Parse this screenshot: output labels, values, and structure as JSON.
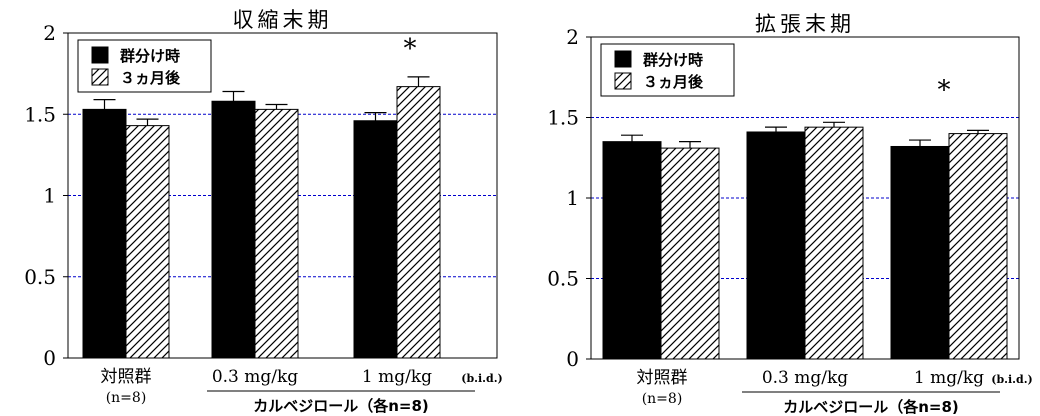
{
  "chart_data": [
    {
      "type": "bar",
      "title": "収縮末期",
      "categories": [
        "対照群\n(n=8)",
        "0.3 mg/kg",
        "1 mg/kg"
      ],
      "series": [
        {
          "name": "群分け時",
          "values": [
            1.53,
            1.58,
            1.46
          ],
          "errors": [
            0.06,
            0.06,
            0.05
          ],
          "fill": "#000000"
        },
        {
          "name": "３ヵ月後",
          "values": [
            1.43,
            1.53,
            1.67
          ],
          "errors": [
            0.04,
            0.03,
            0.06
          ],
          "fill": "hatch"
        }
      ],
      "ylim": [
        0,
        2
      ],
      "yticks": [
        "0",
        "0.5",
        "1",
        "1.5",
        "2"
      ],
      "gridlines": [
        0.5,
        1,
        1.5
      ],
      "grid_color": "#0000cc",
      "legend_position": "top-left",
      "significance_marks": [
        {
          "category": "1 mg/kg",
          "series": "３ヵ月後",
          "symbol": "*"
        }
      ],
      "group_label": "カルベジロール（各n=8)",
      "dosing_note": "(b.i.d.)"
    },
    {
      "type": "bar",
      "title": "拡張末期",
      "categories": [
        "対照群\n(n=8)",
        "0.3 mg/kg",
        "1 mg/kg"
      ],
      "series": [
        {
          "name": "群分け時",
          "values": [
            1.35,
            1.41,
            1.32
          ],
          "errors": [
            0.04,
            0.03,
            0.04
          ],
          "fill": "#000000"
        },
        {
          "name": "３ヵ月後",
          "values": [
            1.31,
            1.44,
            1.4
          ],
          "errors": [
            0.04,
            0.03,
            0.02
          ],
          "fill": "hatch"
        }
      ],
      "ylim": [
        0,
        2
      ],
      "yticks": [
        "0",
        "0.5",
        "1",
        "1.5",
        "2"
      ],
      "gridlines": [
        0.5,
        1,
        1.5
      ],
      "grid_color": "#0000cc",
      "legend_position": "top-left",
      "significance_marks": [
        {
          "category": "1 mg/kg",
          "series": "３ヵ月後",
          "symbol": "*"
        }
      ],
      "group_label": "カルベジロール（各n=8)",
      "dosing_note": "(b.i.d.)"
    }
  ]
}
